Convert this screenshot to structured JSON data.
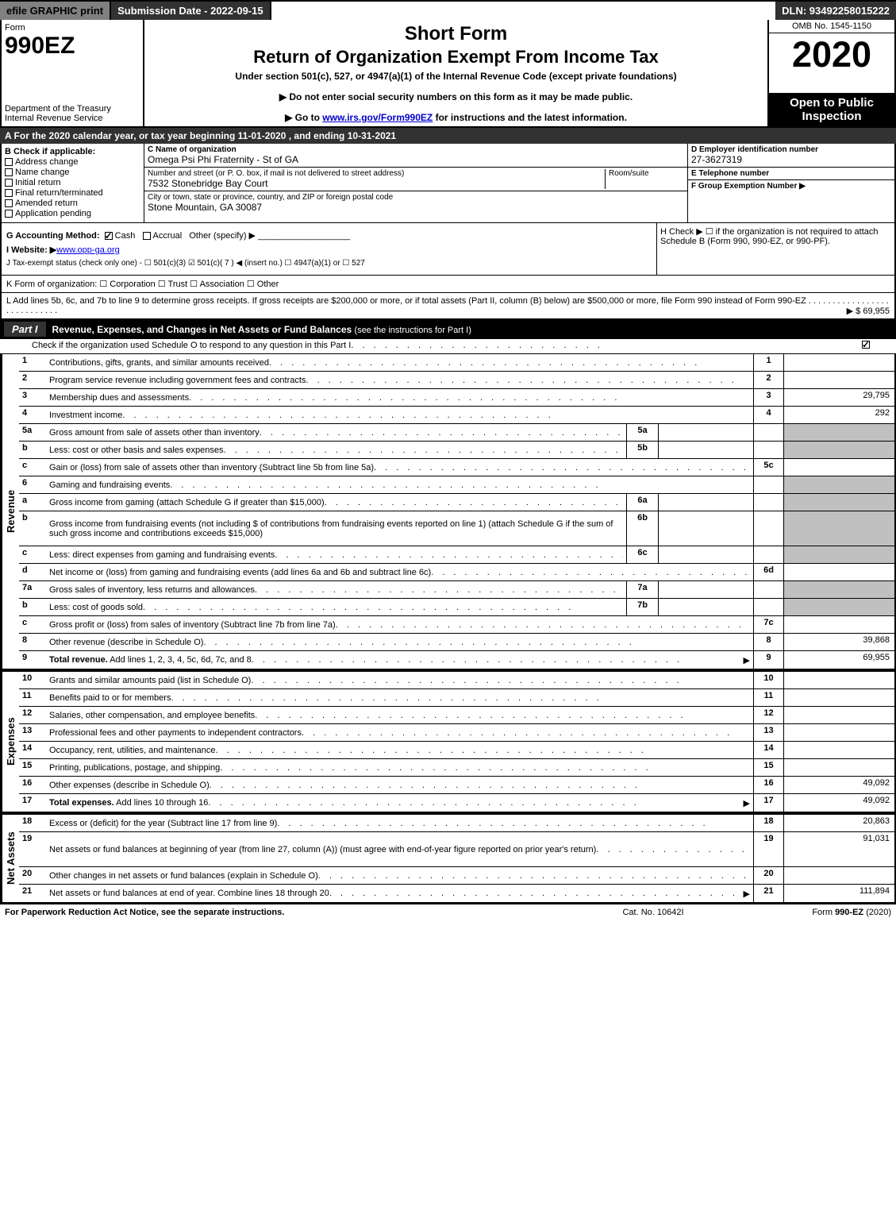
{
  "header": {
    "efile": "efile GRAPHIC print",
    "submission": "Submission Date - 2022-09-15",
    "dln": "DLN: 93492258015222"
  },
  "form_top": {
    "form_label": "Form",
    "form_number": "990EZ",
    "dept1": "Department of the Treasury",
    "dept2": "Internal Revenue Service",
    "short_form": "Short Form",
    "title": "Return of Organization Exempt From Income Tax",
    "subtitle": "Under section 501(c), 527, or 4947(a)(1) of the Internal Revenue Code (except private foundations)",
    "instr1": "▶ Do not enter social security numbers on this form as it may be made public.",
    "instr2_pre": "▶ Go to ",
    "instr2_link": "www.irs.gov/Form990EZ",
    "instr2_post": " for instructions and the latest information.",
    "omb": "OMB No. 1545-1150",
    "year": "2020",
    "open_public": "Open to Public Inspection"
  },
  "line_a": "A For the 2020 calendar year, or tax year beginning 11-01-2020 , and ending 10-31-2021",
  "section_b": {
    "label": "B Check if applicable:",
    "items": [
      "Address change",
      "Name change",
      "Initial return",
      "Final return/terminated",
      "Amended return",
      "Application pending"
    ]
  },
  "section_c": {
    "name_label": "C Name of organization",
    "name": "Omega Psi Phi Fraternity - St of GA",
    "addr_label": "Number and street (or P. O. box, if mail is not delivered to street address)",
    "addr": "7532 Stonebridge Bay Court",
    "room_label": "Room/suite",
    "room": "",
    "city_label": "City or town, state or province, country, and ZIP or foreign postal code",
    "city": "Stone Mountain, GA  30087"
  },
  "section_d": {
    "label": "D Employer identification number",
    "value": "27-3627319"
  },
  "section_e": {
    "label": "E Telephone number",
    "value": ""
  },
  "section_f": {
    "label": "F Group Exemption Number  ▶",
    "value": ""
  },
  "section_g": {
    "label": "G Accounting Method:",
    "cash": "Cash",
    "accrual": "Accrual",
    "other": "Other (specify) ▶"
  },
  "section_h": {
    "text": "H Check ▶ ☐ if the organization is not required to attach Schedule B (Form 990, 990-EZ, or 990-PF)."
  },
  "section_i": {
    "label": "I Website: ▶",
    "value": "www.opp-ga.org"
  },
  "section_j": {
    "text": "J Tax-exempt status (check only one) - ☐ 501(c)(3) ☑ 501(c)( 7 ) ◀ (insert no.) ☐ 4947(a)(1) or ☐ 527"
  },
  "section_k": {
    "text": "K Form of organization:  ☐ Corporation  ☐ Trust  ☐ Association  ☐ Other"
  },
  "section_l": {
    "text": "L Add lines 5b, 6c, and 7b to line 9 to determine gross receipts. If gross receipts are $200,000 or more, or if total assets (Part II, column (B) below) are $500,000 or more, file Form 990 instead of Form 990-EZ",
    "amount": "▶ $ 69,955"
  },
  "part1": {
    "tab": "Part I",
    "title": "Revenue, Expenses, and Changes in Net Assets or Fund Balances",
    "title_note": " (see the instructions for Part I)",
    "check_line": "Check if the organization used Schedule O to respond to any question in this Part I"
  },
  "side_labels": {
    "revenue": "Revenue",
    "expenses": "Expenses",
    "net": "Net Assets"
  },
  "rows": [
    {
      "n": "1",
      "d": "Contributions, gifts, grants, and similar amounts received",
      "ln": "1",
      "amt": ""
    },
    {
      "n": "2",
      "d": "Program service revenue including government fees and contracts",
      "ln": "2",
      "amt": ""
    },
    {
      "n": "3",
      "d": "Membership dues and assessments",
      "ln": "3",
      "amt": "29,795"
    },
    {
      "n": "4",
      "d": "Investment income",
      "ln": "4",
      "amt": "292"
    },
    {
      "n": "5a",
      "d": "Gross amount from sale of assets other than inventory",
      "sub": "5a",
      "subval": "",
      "shaded": true
    },
    {
      "n": "b",
      "d": "Less: cost or other basis and sales expenses",
      "sub": "5b",
      "subval": "",
      "shaded": true
    },
    {
      "n": "c",
      "d": "Gain or (loss) from sale of assets other than inventory (Subtract line 5b from line 5a)",
      "ln": "5c",
      "amt": ""
    },
    {
      "n": "6",
      "d": "Gaming and fundraising events",
      "shaded": true,
      "noln": true
    },
    {
      "n": "a",
      "d": "Gross income from gaming (attach Schedule G if greater than $15,000)",
      "sub": "6a",
      "subval": "",
      "shaded": true
    },
    {
      "n": "b",
      "d": "Gross income from fundraising events (not including $                      of contributions from fundraising events reported on line 1) (attach Schedule G if the sum of such gross income and contributions exceeds $15,000)",
      "sub": "6b",
      "subval": "",
      "shaded": true,
      "tall": true
    },
    {
      "n": "c",
      "d": "Less: direct expenses from gaming and fundraising events",
      "sub": "6c",
      "subval": "",
      "shaded": true
    },
    {
      "n": "d",
      "d": "Net income or (loss) from gaming and fundraising events (add lines 6a and 6b and subtract line 6c)",
      "ln": "6d",
      "amt": ""
    },
    {
      "n": "7a",
      "d": "Gross sales of inventory, less returns and allowances",
      "sub": "7a",
      "subval": "",
      "shaded": true
    },
    {
      "n": "b",
      "d": "Less: cost of goods sold",
      "sub": "7b",
      "subval": "",
      "shaded": true
    },
    {
      "n": "c",
      "d": "Gross profit or (loss) from sales of inventory (Subtract line 7b from line 7a)",
      "ln": "7c",
      "amt": ""
    },
    {
      "n": "8",
      "d": "Other revenue (describe in Schedule O)",
      "ln": "8",
      "amt": "39,868"
    },
    {
      "n": "9",
      "d": "Total revenue. Add lines 1, 2, 3, 4, 5c, 6d, 7c, and 8",
      "ln": "9",
      "amt": "69,955",
      "bold": true,
      "arrow": true
    }
  ],
  "expense_rows": [
    {
      "n": "10",
      "d": "Grants and similar amounts paid (list in Schedule O)",
      "ln": "10",
      "amt": ""
    },
    {
      "n": "11",
      "d": "Benefits paid to or for members",
      "ln": "11",
      "amt": ""
    },
    {
      "n": "12",
      "d": "Salaries, other compensation, and employee benefits",
      "ln": "12",
      "amt": ""
    },
    {
      "n": "13",
      "d": "Professional fees and other payments to independent contractors",
      "ln": "13",
      "amt": ""
    },
    {
      "n": "14",
      "d": "Occupancy, rent, utilities, and maintenance",
      "ln": "14",
      "amt": ""
    },
    {
      "n": "15",
      "d": "Printing, publications, postage, and shipping",
      "ln": "15",
      "amt": ""
    },
    {
      "n": "16",
      "d": "Other expenses (describe in Schedule O)",
      "ln": "16",
      "amt": "49,092"
    },
    {
      "n": "17",
      "d": "Total expenses. Add lines 10 through 16",
      "ln": "17",
      "amt": "49,092",
      "bold": true,
      "arrow": true
    }
  ],
  "net_rows": [
    {
      "n": "18",
      "d": "Excess or (deficit) for the year (Subtract line 17 from line 9)",
      "ln": "18",
      "amt": "20,863"
    },
    {
      "n": "19",
      "d": "Net assets or fund balances at beginning of year (from line 27, column (A)) (must agree with end-of-year figure reported on prior year's return)",
      "ln": "19",
      "amt": "91,031",
      "tall": true
    },
    {
      "n": "20",
      "d": "Other changes in net assets or fund balances (explain in Schedule O)",
      "ln": "20",
      "amt": ""
    },
    {
      "n": "21",
      "d": "Net assets or fund balances at end of year. Combine lines 18 through 20",
      "ln": "21",
      "amt": "111,894",
      "arrow": true
    }
  ],
  "footer": {
    "left": "For Paperwork Reduction Act Notice, see the separate instructions.",
    "mid": "Cat. No. 10642I",
    "right_pre": "Form ",
    "right_bold": "990-EZ",
    "right_post": " (2020)"
  }
}
